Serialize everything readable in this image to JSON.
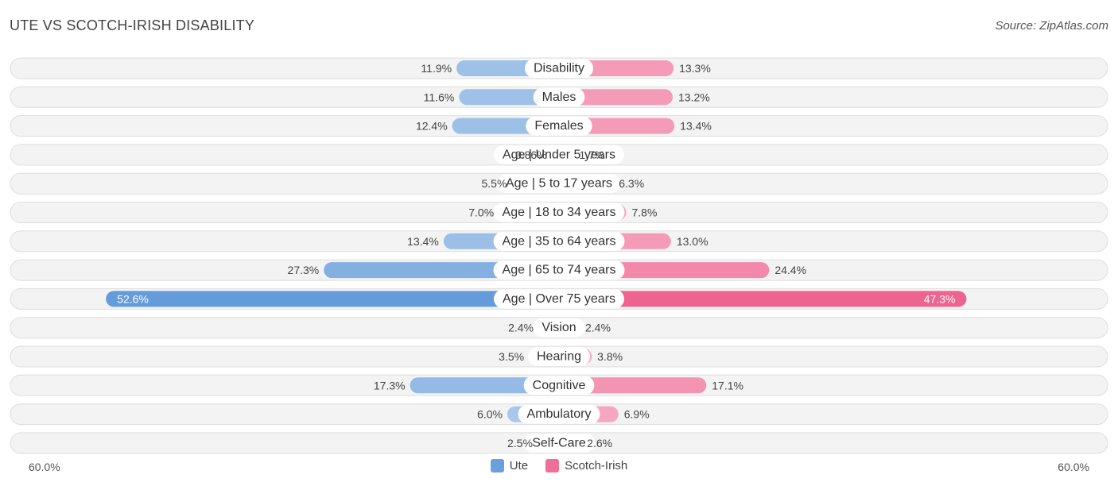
{
  "header": {
    "title": "UTE VS SCOTCH-IRISH DISABILITY",
    "source": "Source: ZipAtlas.com"
  },
  "axis": {
    "left_label": "60.0%",
    "right_label": "60.0%"
  },
  "legend": [
    {
      "name": "Ute",
      "color": "#6aa0dc"
    },
    {
      "name": "Scotch-Irish",
      "color": "#ee6f98"
    }
  ],
  "chart_data": {
    "type": "bar",
    "orientation": "horizontal-diverging",
    "xlim": [
      -60,
      60
    ],
    "categories": [
      "Disability",
      "Males",
      "Females",
      "Age | Under 5 years",
      "Age | 5 to 17 years",
      "Age | 18 to 34 years",
      "Age | 35 to 64 years",
      "Age | 65 to 74 years",
      "Age | Over 75 years",
      "Vision",
      "Hearing",
      "Cognitive",
      "Ambulatory",
      "Self-Care"
    ],
    "series": [
      {
        "name": "Ute",
        "values": [
          11.9,
          11.6,
          12.4,
          0.86,
          5.5,
          7.0,
          13.4,
          27.3,
          52.6,
          2.4,
          3.5,
          17.3,
          6.0,
          2.5
        ],
        "labels": [
          "11.9%",
          "11.6%",
          "12.4%",
          "0.86%",
          "5.5%",
          "7.0%",
          "13.4%",
          "27.3%",
          "52.6%",
          "2.4%",
          "3.5%",
          "17.3%",
          "6.0%",
          "2.5%"
        ]
      },
      {
        "name": "Scotch-Irish",
        "values": [
          13.3,
          13.2,
          13.4,
          1.7,
          6.3,
          7.8,
          13.0,
          24.4,
          47.3,
          2.4,
          3.8,
          17.1,
          6.9,
          2.6
        ],
        "labels": [
          "13.3%",
          "13.2%",
          "13.4%",
          "1.7%",
          "6.3%",
          "7.8%",
          "13.0%",
          "24.4%",
          "47.3%",
          "2.4%",
          "3.8%",
          "17.1%",
          "6.9%",
          "2.6%"
        ]
      }
    ]
  }
}
